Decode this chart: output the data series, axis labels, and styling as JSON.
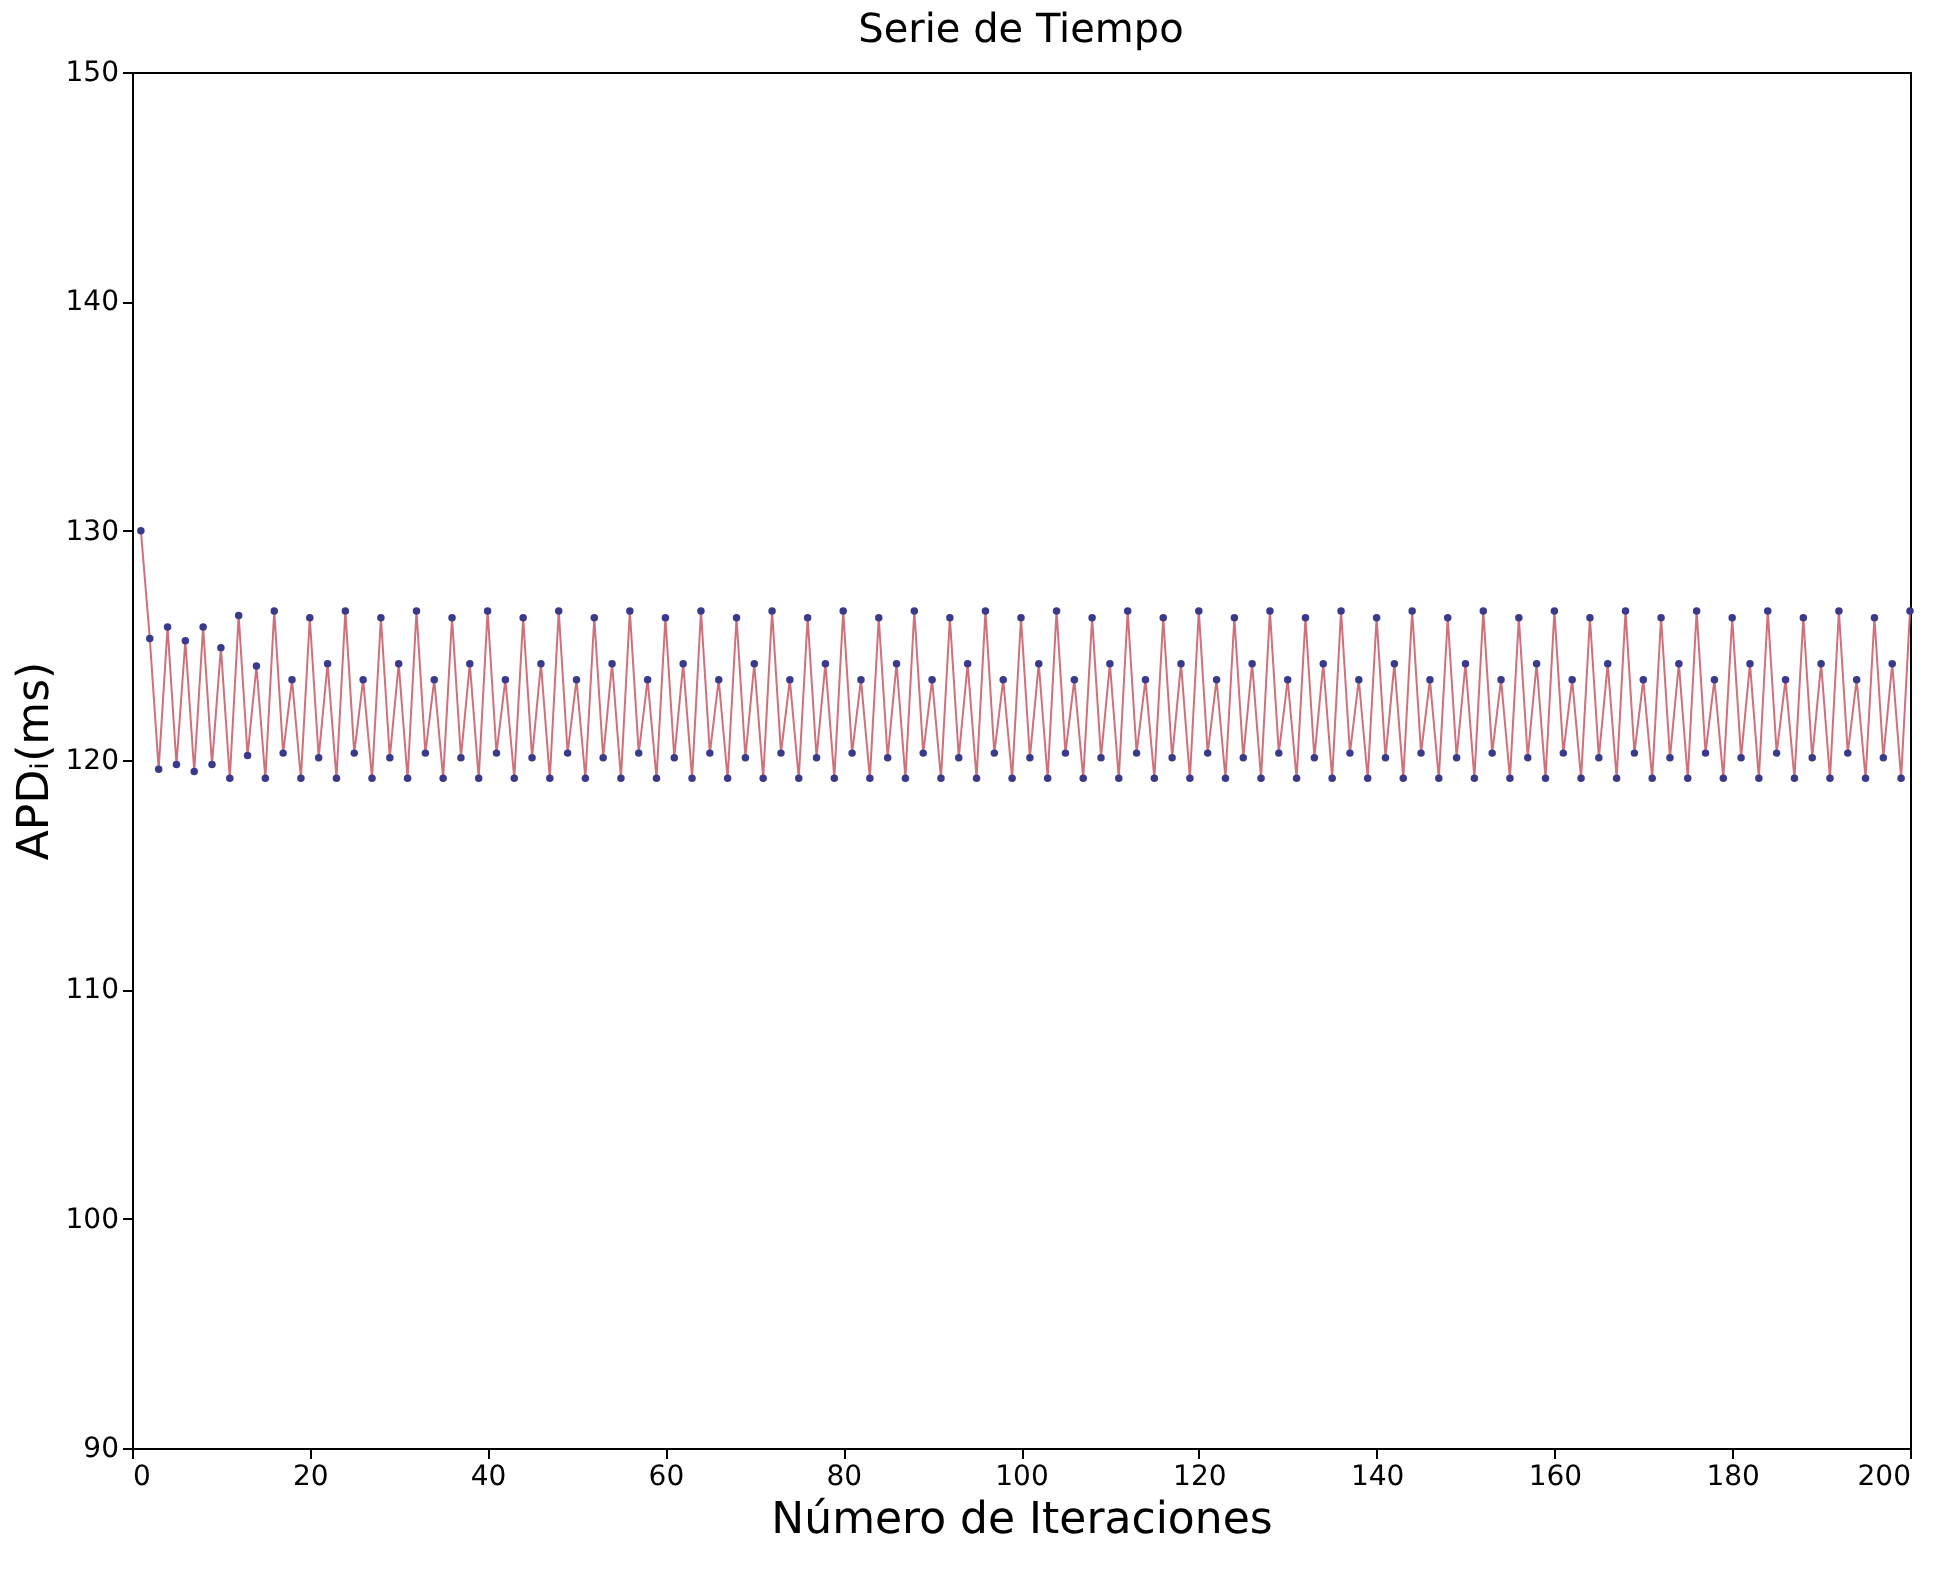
{
  "chart_data": {
    "type": "line",
    "title": "Serie de Tiempo",
    "xlabel": "Número de Iteraciones",
    "ylabel": "APDᵢ(ms)",
    "x": [
      1,
      2,
      3,
      4,
      5,
      6,
      7,
      8,
      9,
      10,
      11,
      12,
      13,
      14,
      15,
      16,
      17,
      18,
      19,
      20,
      21,
      22,
      23,
      24,
      25,
      26,
      27,
      28,
      29,
      30,
      31,
      32,
      33,
      34,
      35,
      36,
      37,
      38,
      39,
      40,
      41,
      42,
      43,
      44,
      45,
      46,
      47,
      48,
      49,
      50,
      51,
      52,
      53,
      54,
      55,
      56,
      57,
      58,
      59,
      60,
      61,
      62,
      63,
      64,
      65,
      66,
      67,
      68,
      69,
      70,
      71,
      72,
      73,
      74,
      75,
      76,
      77,
      78,
      79,
      80,
      81,
      82,
      83,
      84,
      85,
      86,
      87,
      88,
      89,
      90,
      91,
      92,
      93,
      94,
      95,
      96,
      97,
      98,
      99,
      100,
      101,
      102,
      103,
      104,
      105,
      106,
      107,
      108,
      109,
      110,
      111,
      112,
      113,
      114,
      115,
      116,
      117,
      118,
      119,
      120,
      121,
      122,
      123,
      124,
      125,
      126,
      127,
      128,
      129,
      130,
      131,
      132,
      133,
      134,
      135,
      136,
      137,
      138,
      139,
      140,
      141,
      142,
      143,
      144,
      145,
      146,
      147,
      148,
      149,
      150,
      151,
      152,
      153,
      154,
      155,
      156,
      157,
      158,
      159,
      160,
      161,
      162,
      163,
      164,
      165,
      166,
      167,
      168,
      169,
      170,
      171,
      172,
      173,
      174,
      175,
      176,
      177,
      178,
      179,
      180,
      181,
      182,
      183,
      184,
      185,
      186,
      187,
      188,
      189,
      190,
      191,
      192,
      193,
      194,
      195,
      196,
      197,
      198,
      199,
      200
    ],
    "series": [
      {
        "color": "#d0707a",
        "line_style": "solid",
        "marker": "none",
        "values": [
          130,
          125.3,
          119.6,
          125.8,
          119.8,
          125.2,
          119.5,
          125.8,
          119.8,
          124.9,
          119.2,
          126.3,
          120.2,
          124.1,
          119.2,
          126.5,
          120.3,
          123.5,
          119.2,
          126.2,
          120.1,
          124.2,
          119.2,
          126.5,
          120.3,
          123.5,
          119.2,
          126.2,
          120.1,
          124.2,
          119.2,
          126.5,
          120.3,
          123.5,
          119.2,
          126.2,
          120.1,
          124.2,
          119.2,
          126.5,
          120.3,
          123.5,
          119.2,
          126.2,
          120.1,
          124.2,
          119.2,
          126.5,
          120.3,
          123.5,
          119.2,
          126.2,
          120.1,
          124.2,
          119.2,
          126.5,
          120.3,
          123.5,
          119.2,
          126.2,
          120.1,
          124.2,
          119.2,
          126.5,
          120.3,
          123.5,
          119.2,
          126.2,
          120.1,
          124.2,
          119.2,
          126.5,
          120.3,
          123.5,
          119.2,
          126.2,
          120.1,
          124.2,
          119.2,
          126.5,
          120.3,
          123.5,
          119.2,
          126.2,
          120.1,
          124.2,
          119.2,
          126.5,
          120.3,
          123.5,
          119.2,
          126.2,
          120.1,
          124.2,
          119.2,
          126.5,
          120.3,
          123.5,
          119.2,
          126.2,
          120.1,
          124.2,
          119.2,
          126.5,
          120.3,
          123.5,
          119.2,
          126.2,
          120.1,
          124.2,
          119.2,
          126.5,
          120.3,
          123.5,
          119.2,
          126.2,
          120.1,
          124.2,
          119.2,
          126.5,
          120.3,
          123.5,
          119.2,
          126.2,
          120.1,
          124.2,
          119.2,
          126.5,
          120.3,
          123.5,
          119.2,
          126.2,
          120.1,
          124.2,
          119.2,
          126.5,
          120.3,
          123.5,
          119.2,
          126.2,
          120.1,
          124.2,
          119.2,
          126.5,
          120.3,
          123.5,
          119.2,
          126.2,
          120.1,
          124.2,
          119.2,
          126.5,
          120.3,
          123.5,
          119.2,
          126.2,
          120.1,
          124.2,
          119.2,
          126.5,
          120.3,
          123.5,
          119.2,
          126.2,
          120.1,
          124.2,
          119.2,
          126.5,
          120.3,
          123.5,
          119.2,
          126.2,
          120.1,
          124.2,
          119.2,
          126.5,
          120.3,
          123.5,
          119.2,
          126.2,
          120.1,
          124.2,
          119.2,
          126.5,
          120.3,
          123.5,
          119.2,
          126.2,
          120.1,
          124.2,
          119.2,
          126.5,
          120.3,
          123.5,
          119.2,
          126.2,
          120.1,
          124.2,
          119.2,
          126.5
        ]
      },
      {
        "type": "scatter",
        "color": "#3a3a8c",
        "marker": "circle",
        "values": [
          130,
          125.3,
          119.6,
          125.8,
          119.8,
          125.2,
          119.5,
          125.8,
          119.8,
          124.9,
          119.2,
          126.3,
          120.2,
          124.1,
          119.2,
          126.5,
          120.3,
          123.5,
          119.2,
          126.2,
          120.1,
          124.2,
          119.2,
          126.5,
          120.3,
          123.5,
          119.2,
          126.2,
          120.1,
          124.2,
          119.2,
          126.5,
          120.3,
          123.5,
          119.2,
          126.2,
          120.1,
          124.2,
          119.2,
          126.5,
          120.3,
          123.5,
          119.2,
          126.2,
          120.1,
          124.2,
          119.2,
          126.5,
          120.3,
          123.5,
          119.2,
          126.2,
          120.1,
          124.2,
          119.2,
          126.5,
          120.3,
          123.5,
          119.2,
          126.2,
          120.1,
          124.2,
          119.2,
          126.5,
          120.3,
          123.5,
          119.2,
          126.2,
          120.1,
          124.2,
          119.2,
          126.5,
          120.3,
          123.5,
          119.2,
          126.2,
          120.1,
          124.2,
          119.2,
          126.5,
          120.3,
          123.5,
          119.2,
          126.2,
          120.1,
          124.2,
          119.2,
          126.5,
          120.3,
          123.5,
          119.2,
          126.2,
          120.1,
          124.2,
          119.2,
          126.5,
          120.3,
          123.5,
          119.2,
          126.2,
          120.1,
          124.2,
          119.2,
          126.5,
          120.3,
          123.5,
          119.2,
          126.2,
          120.1,
          124.2,
          119.2,
          126.5,
          120.3,
          123.5,
          119.2,
          126.2,
          120.1,
          124.2,
          119.2,
          126.5,
          120.3,
          123.5,
          119.2,
          126.2,
          120.1,
          124.2,
          119.2,
          126.5,
          120.3,
          123.5,
          119.2,
          126.2,
          120.1,
          124.2,
          119.2,
          126.5,
          120.3,
          123.5,
          119.2,
          126.2,
          120.1,
          124.2,
          119.2,
          126.5,
          120.3,
          123.5,
          119.2,
          126.2,
          120.1,
          124.2,
          119.2,
          126.5,
          120.3,
          123.5,
          119.2,
          126.2,
          120.1,
          124.2,
          119.2,
          126.5,
          120.3,
          123.5,
          119.2,
          126.2,
          120.1,
          124.2,
          119.2,
          126.5,
          120.3,
          123.5,
          119.2,
          126.2,
          120.1,
          124.2,
          119.2,
          126.5,
          120.3,
          123.5,
          119.2,
          126.2,
          120.1,
          124.2,
          119.2,
          126.5,
          120.3,
          123.5,
          119.2,
          126.2,
          120.1,
          124.2,
          119.2,
          126.5,
          120.3,
          123.5,
          119.2,
          126.2,
          120.1,
          124.2,
          119.2,
          126.5
        ]
      }
    ],
    "xlim": [
      0,
      200
    ],
    "xticks": [
      0,
      20,
      40,
      60,
      80,
      100,
      120,
      140,
      160,
      180,
      200
    ],
    "ylim": [
      90,
      150
    ],
    "yticks": [
      90,
      100,
      110,
      120,
      130,
      140,
      150
    ],
    "grid": false
  }
}
